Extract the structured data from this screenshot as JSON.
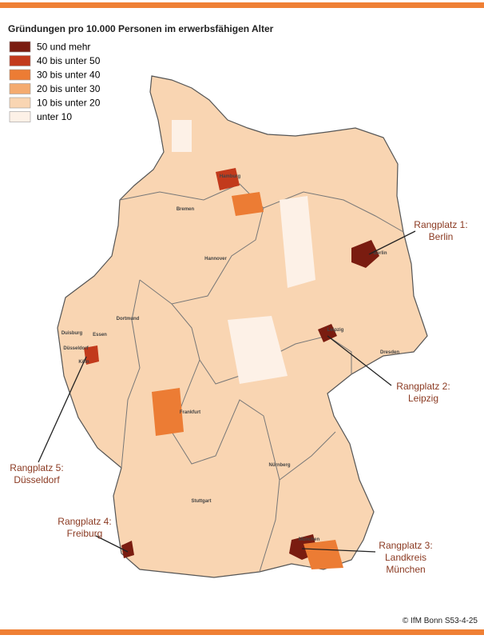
{
  "title": "Gründungen pro 10.000 Personen im erwerbsfähigen Alter",
  "legend": {
    "items": [
      {
        "label": "50 und mehr",
        "color": "#7a1c10"
      },
      {
        "label": "40 bis unter 50",
        "color": "#c23a1c"
      },
      {
        "label": "30 bis unter 40",
        "color": "#ec7c34"
      },
      {
        "label": "20 bis unter 30",
        "color": "#f4ab70"
      },
      {
        "label": "10 bis unter 20",
        "color": "#f9d5b2"
      },
      {
        "label": "unter 10",
        "color": "#fdf1e7"
      }
    ]
  },
  "cities": [
    "Hamburg",
    "Bremen",
    "Hannover",
    "Berlin",
    "Dortmund",
    "Duisburg",
    "Essen",
    "Düsseldorf",
    "Köln",
    "Leipzig",
    "Dresden",
    "Frankfurt",
    "Nürnberg",
    "Stuttgart",
    "München"
  ],
  "annotations": [
    {
      "lines": [
        "Rangplatz 1:",
        "Berlin"
      ]
    },
    {
      "lines": [
        "Rangplatz 2:",
        "Leipzig"
      ]
    },
    {
      "lines": [
        "Rangplatz 3:",
        "Landkreis",
        "München"
      ]
    },
    {
      "lines": [
        "Rangplatz 4:",
        "Freiburg"
      ]
    },
    {
      "lines": [
        "Rangplatz 5:",
        "Düsseldorf"
      ]
    }
  ],
  "footer": "© IfM Bonn S53-4-25"
}
